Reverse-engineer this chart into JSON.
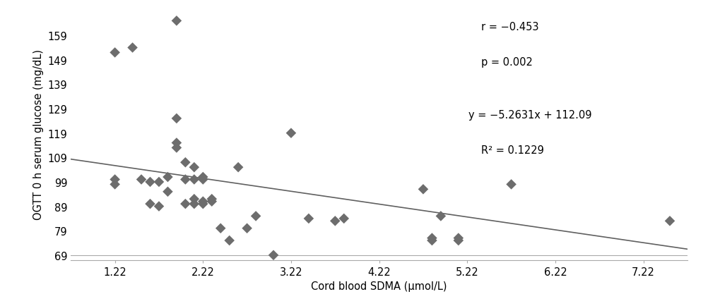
{
  "x_data": [
    1.22,
    1.22,
    1.22,
    1.42,
    1.52,
    1.62,
    1.62,
    1.72,
    1.72,
    1.82,
    1.82,
    1.92,
    1.92,
    1.92,
    1.92,
    2.02,
    2.02,
    2.02,
    2.12,
    2.12,
    2.12,
    2.12,
    2.22,
    2.22,
    2.22,
    2.22,
    2.32,
    2.32,
    2.42,
    2.52,
    2.62,
    2.72,
    2.82,
    3.02,
    3.22,
    3.42,
    3.72,
    3.82,
    4.72,
    4.82,
    4.82,
    4.92,
    5.12,
    5.12,
    5.72,
    7.52
  ],
  "y_data": [
    152,
    100,
    98,
    154,
    100,
    90,
    99,
    89,
    99,
    95,
    101,
    113,
    115,
    125,
    165,
    100,
    107,
    90,
    100,
    105,
    90,
    92,
    101,
    100,
    90,
    91,
    92,
    91,
    80,
    75,
    105,
    80,
    85,
    69,
    119,
    84,
    83,
    84,
    96,
    75,
    76,
    85,
    75,
    76,
    98,
    83
  ],
  "slope": -5.2631,
  "intercept": 112.09,
  "equation_text": "y = −5.2631x + 112.09",
  "r2_text": "R² = 0.1229",
  "r_text": "r = −0.453",
  "p_text": "p = 0.002",
  "xlabel": "Cord blood SDMA (μmol/L)",
  "ylabel": "OGTT 0 h serum glucose (mg/dL)",
  "xlim": [
    0.72,
    7.72
  ],
  "ylim": [
    67,
    170
  ],
  "xticks": [
    1.22,
    2.22,
    3.22,
    4.22,
    5.22,
    6.22,
    7.22
  ],
  "yticks": [
    69,
    79,
    89,
    99,
    109,
    119,
    129,
    139,
    149,
    159
  ],
  "marker_color": "#6d6d6d",
  "line_color": "#606060",
  "marker_size": 55,
  "font_size": 10.5,
  "annotation_fontsize": 10.5
}
